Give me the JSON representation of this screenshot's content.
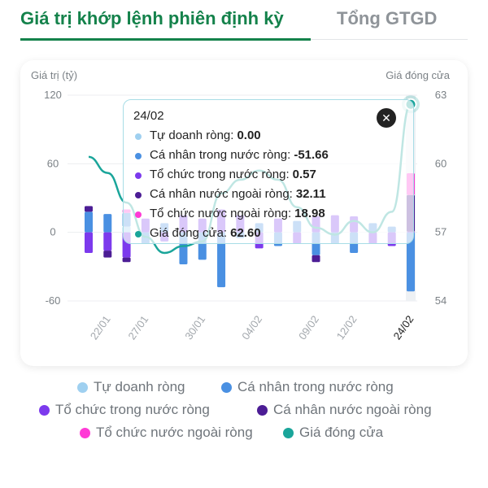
{
  "tabs": {
    "active_label": "Giá trị khớp lệnh phiên định kỳ",
    "inactive_label": "Tổng GTGD"
  },
  "colors": {
    "brand": "#14824b",
    "tu_doanh": "#9fd0f0",
    "ca_nhan_trong_nuoc": "#4a90e2",
    "to_chuc_trong_nuoc": "#7c3aed",
    "ca_nhan_nuoc_ngoai": "#4c1d95",
    "to_chuc_nuoc_ngoai": "#ff3ad6",
    "gia_dong_cua": "#1aa59a"
  },
  "tooltip": {
    "date": "24/02",
    "close_icon": "close-icon",
    "rows": [
      {
        "label": "Tự doanh ròng:",
        "value": "0.00",
        "color": "#9fd0f0"
      },
      {
        "label": "Cá nhân trong nước ròng:",
        "value": "-51.66",
        "color": "#4a90e2"
      },
      {
        "label": "Tổ chức trong nước ròng:",
        "value": "0.57",
        "color": "#7c3aed"
      },
      {
        "label": "Cá nhân nước ngoài ròng:",
        "value": "32.11",
        "color": "#4c1d95"
      },
      {
        "label": "Tổ chức nước ngoài ròng:",
        "value": "18.98",
        "color": "#ff3ad6"
      },
      {
        "label": "Giá đóng cửa:",
        "value": "62.60",
        "color": "#1aa59a"
      }
    ]
  },
  "chart_data": {
    "type": "bar",
    "stacked": true,
    "ylabel": "Giá trị (tỷ)",
    "y2label": "Giá đóng cửa",
    "ylim": [
      -60,
      120
    ],
    "y_ticks": [
      "120",
      "60",
      "0",
      "-60"
    ],
    "y2lim": [
      54,
      63
    ],
    "y2_ticks": [
      "63",
      "60",
      "57",
      "54"
    ],
    "x_tick_labels": [
      "22/01",
      "27/01",
      "30/01",
      "04/02",
      "09/02",
      "12/02",
      "24/02"
    ],
    "x_tick_indices": [
      1,
      3,
      6,
      9,
      12,
      14,
      17
    ],
    "highlight_index": 17,
    "legend_position": "bottom",
    "series": [
      {
        "name": "Tự doanh ròng",
        "color": "#9fd0f0",
        "values": [
          0,
          0,
          5,
          0,
          0,
          0,
          0,
          0,
          0,
          0,
          0,
          0,
          0,
          0,
          0,
          0,
          0,
          0
        ]
      },
      {
        "name": "Cá nhân trong nước ròng",
        "color": "#4a90e2",
        "values": [
          18,
          16,
          12,
          -10,
          8,
          -28,
          -24,
          -48,
          -5,
          8,
          -12,
          10,
          -20,
          -10,
          -18,
          8,
          5,
          -51.66
        ]
      },
      {
        "name": "Tổ chức trong nước ròng",
        "color": "#7c3aed",
        "values": [
          -18,
          -16,
          -22,
          12,
          -8,
          15,
          12,
          20,
          15,
          -14,
          12,
          -10,
          14,
          15,
          14,
          -10,
          -12,
          0.57
        ]
      },
      {
        "name": "Cá nhân nước ngoài ròng",
        "color": "#4c1d95",
        "values": [
          5,
          -6,
          -4,
          0,
          0,
          0,
          0,
          0,
          0,
          0,
          0,
          0,
          -6,
          0,
          0,
          0,
          0,
          32.11
        ]
      },
      {
        "name": "Tổ chức nước ngoài ròng",
        "color": "#ff3ad6",
        "values": [
          0,
          0,
          3,
          0,
          0,
          0,
          0,
          0,
          0,
          0,
          0,
          0,
          0,
          0,
          0,
          0,
          0,
          18.98
        ]
      }
    ],
    "line_series": {
      "name": "Giá đóng cửa",
      "color": "#1aa59a",
      "values": [
        60.3,
        59.6,
        58.3,
        56.8,
        56.1,
        56.4,
        56.6,
        58.7,
        59.3,
        59.7,
        59.3,
        58.1,
        57.2,
        56.9,
        57.5,
        57.0,
        57.9,
        62.6
      ]
    }
  },
  "legend": [
    {
      "label": "Tự doanh ròng",
      "color": "#9fd0f0"
    },
    {
      "label": "Cá nhân trong nước ròng",
      "color": "#4a90e2"
    },
    {
      "label": "Tổ chức trong nước ròng",
      "color": "#7c3aed"
    },
    {
      "label": "Cá nhân nước ngoài ròng",
      "color": "#4c1d95"
    },
    {
      "label": "Tổ chức nước ngoài ròng",
      "color": "#ff3ad6"
    },
    {
      "label": "Giá đóng cửa",
      "color": "#1aa59a"
    }
  ]
}
